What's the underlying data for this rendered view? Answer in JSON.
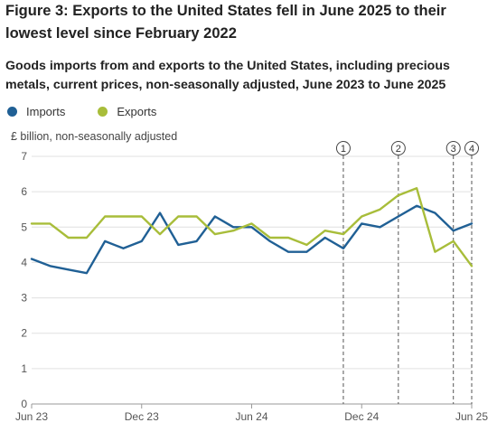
{
  "figure": {
    "title": "Figure 3: Exports to the United States fell in June 2025 to their lowest level since February 2022",
    "subtitle": "Goods imports from and exports to the United States, including precious metals, current prices, non-seasonally adjusted, June 2023 to June 2025"
  },
  "chart_data": {
    "type": "line",
    "title": "Goods imports from and exports to the United States, including precious metals, current prices, non-seasonally adjusted, June 2023 to June 2025",
    "ylabel": "£ billion, non-seasonally adjusted",
    "xlabel": "",
    "ylim": [
      0,
      7
    ],
    "yticks": [
      0,
      1,
      2,
      3,
      4,
      5,
      6,
      7
    ],
    "grid": true,
    "legend_position": "top-left",
    "x": [
      "Jun 23",
      "Jul 23",
      "Aug 23",
      "Sep 23",
      "Oct 23",
      "Nov 23",
      "Dec 23",
      "Jan 24",
      "Feb 24",
      "Mar 24",
      "Apr 24",
      "May 24",
      "Jun 24",
      "Jul 24",
      "Aug 24",
      "Sep 24",
      "Oct 24",
      "Nov 24",
      "Dec 24",
      "Jan 25",
      "Feb 25",
      "Mar 25",
      "Apr 25",
      "May 25",
      "Jun 25"
    ],
    "xtick_labels": [
      "Jun 23",
      "Dec 23",
      "Jun 24",
      "Dec 24",
      "Jun 25"
    ],
    "xtick_index": [
      0,
      6,
      12,
      18,
      24
    ],
    "series": [
      {
        "name": "Imports",
        "color": "#206095",
        "values": [
          4.1,
          3.9,
          3.8,
          3.7,
          4.6,
          4.4,
          4.6,
          5.4,
          4.5,
          4.6,
          5.3,
          5.0,
          5.0,
          4.6,
          4.3,
          4.3,
          4.7,
          4.4,
          5.1,
          5.0,
          5.3,
          5.6,
          5.4,
          4.9,
          5.1
        ]
      },
      {
        "name": "Exports",
        "color": "#a8bd3a",
        "values": [
          5.1,
          5.1,
          4.7,
          4.7,
          5.3,
          5.3,
          5.3,
          4.8,
          5.3,
          5.3,
          4.8,
          4.9,
          5.1,
          4.7,
          4.7,
          4.5,
          4.9,
          4.8,
          5.3,
          5.5,
          5.9,
          6.1,
          4.3,
          4.6,
          3.9
        ]
      }
    ],
    "annotations": [
      {
        "label": "1",
        "x_index": 17
      },
      {
        "label": "2",
        "x_index": 20
      },
      {
        "label": "3",
        "x_index": 23
      },
      {
        "label": "4",
        "x_index": 24
      }
    ]
  }
}
